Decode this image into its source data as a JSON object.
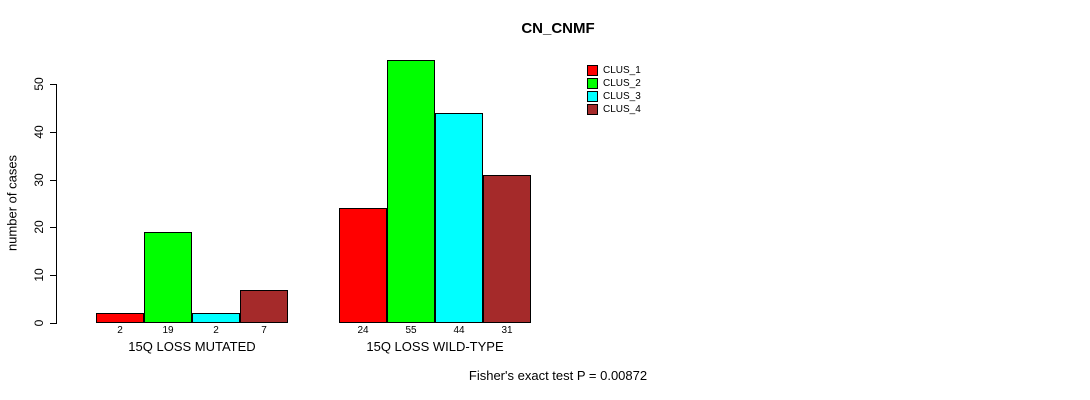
{
  "chart_data": {
    "type": "bar",
    "title": "CN_CNMF",
    "ylabel": "number of cases",
    "xlabel": "",
    "ylim": [
      0,
      55
    ],
    "yticks": [
      0,
      10,
      20,
      30,
      40,
      50
    ],
    "categories": [
      "15Q LOSS MUTATED",
      "15Q LOSS WILD-TYPE"
    ],
    "series": [
      {
        "name": "CLUS_1",
        "color": "#ff0000",
        "values": [
          2,
          24
        ]
      },
      {
        "name": "CLUS_2",
        "color": "#00ff00",
        "values": [
          19,
          55
        ]
      },
      {
        "name": "CLUS_3",
        "color": "#00ffff",
        "values": [
          2,
          44
        ]
      },
      {
        "name": "CLUS_4",
        "color": "#a52a2a",
        "values": [
          7,
          31
        ]
      }
    ],
    "bar_value_labels": [
      [
        2,
        19,
        2,
        7
      ],
      [
        24,
        55,
        44,
        31
      ]
    ],
    "legend_position": "top-right",
    "grid": false,
    "annotation": "Fisher's exact test P = 0.00872"
  }
}
